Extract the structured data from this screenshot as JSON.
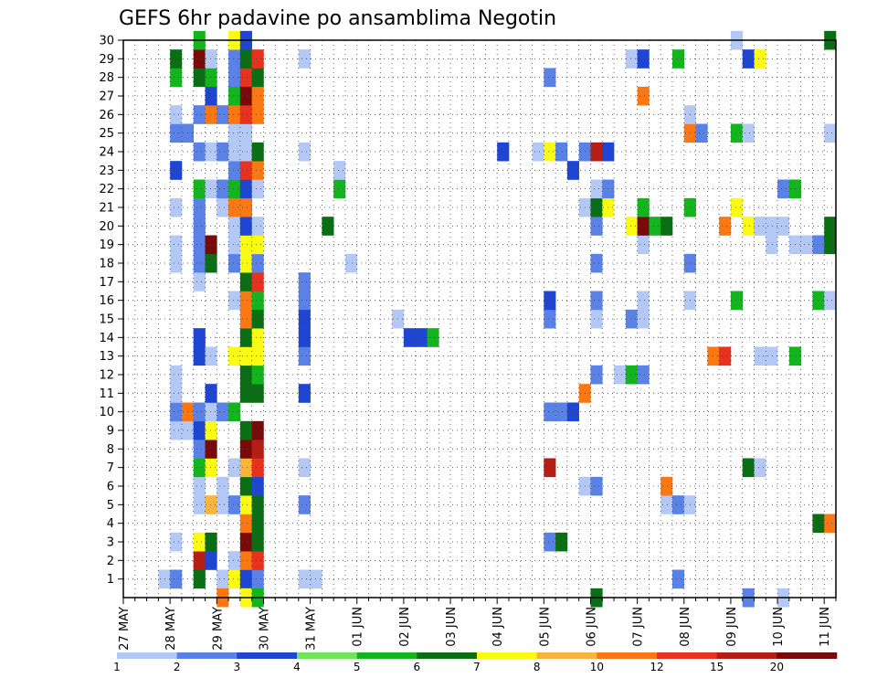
{
  "chart_data": {
    "type": "heatmap",
    "title": "GEFS 6hr padavine po ansamblima Negotin",
    "xlabel": "",
    "ylabel": "",
    "x_tick_labels": [
      "27 MAY",
      "28 MAY",
      "29 MAY",
      "30 MAY",
      "31 MAY",
      "01 JUN",
      "02 JUN",
      "03 JUN",
      "04 JUN",
      "05 JUN",
      "06 JUN",
      "07 JUN",
      "08 JUN",
      "09 JUN",
      "10 JUN",
      "11 JUN"
    ],
    "y_tick_labels": [
      "1",
      "2",
      "3",
      "4",
      "5",
      "6",
      "7",
      "8",
      "9",
      "10",
      "11",
      "12",
      "13",
      "14",
      "15",
      "16",
      "17",
      "18",
      "19",
      "20",
      "21",
      "22",
      "23",
      "24",
      "25",
      "26",
      "27",
      "28",
      "29",
      "30"
    ],
    "grid": true,
    "grid_style": "dotted",
    "colorbar": {
      "position": "bottom",
      "labels": [
        "1",
        "2",
        "3",
        "4",
        "5",
        "6",
        "7",
        "8",
        "10",
        "12",
        "15",
        "20"
      ],
      "colors": [
        "#b4c8f5",
        "#5a82e6",
        "#1e46d2",
        "#6ee65a",
        "#14b41e",
        "#0a6e14",
        "#fafa14",
        "#fab43c",
        "#fa7814",
        "#e6321e",
        "#b41e14",
        "#780a0a"
      ]
    },
    "x_range": [
      0,
      61
    ],
    "y_range": [
      0,
      30
    ],
    "cells_note": "each cell: [time_step_index (6h steps from 27 MAY 00Z), member, color_class 0-11]",
    "cells": [
      [
        3,
        1,
        0
      ],
      [
        4,
        1,
        1
      ],
      [
        6,
        1,
        5
      ],
      [
        8,
        1,
        0
      ],
      [
        9,
        1,
        6
      ],
      [
        10,
        1,
        2
      ],
      [
        11,
        1,
        1
      ],
      [
        15,
        1,
        0
      ],
      [
        16,
        1,
        0
      ],
      [
        47,
        1,
        1
      ],
      [
        6,
        2,
        10
      ],
      [
        7,
        2,
        2
      ],
      [
        9,
        2,
        0
      ],
      [
        10,
        2,
        8
      ],
      [
        11,
        2,
        9
      ],
      [
        4,
        3,
        0
      ],
      [
        6,
        3,
        6
      ],
      [
        7,
        3,
        5
      ],
      [
        10,
        3,
        11
      ],
      [
        11,
        3,
        5
      ],
      [
        36,
        3,
        1
      ],
      [
        37,
        3,
        5
      ],
      [
        10,
        4,
        8
      ],
      [
        11,
        4,
        5
      ],
      [
        59,
        4,
        5
      ],
      [
        60,
        4,
        8
      ],
      [
        6,
        5,
        0
      ],
      [
        7,
        5,
        7
      ],
      [
        8,
        5,
        0
      ],
      [
        9,
        5,
        1
      ],
      [
        10,
        5,
        6
      ],
      [
        11,
        5,
        5
      ],
      [
        15,
        5,
        1
      ],
      [
        46,
        5,
        0
      ],
      [
        47,
        5,
        1
      ],
      [
        48,
        5,
        0
      ],
      [
        6,
        6,
        0
      ],
      [
        8,
        6,
        0
      ],
      [
        10,
        6,
        5
      ],
      [
        11,
        6,
        2
      ],
      [
        39,
        6,
        0
      ],
      [
        40,
        6,
        1
      ],
      [
        46,
        6,
        8
      ],
      [
        6,
        7,
        4
      ],
      [
        7,
        7,
        6
      ],
      [
        9,
        7,
        0
      ],
      [
        10,
        7,
        7
      ],
      [
        11,
        7,
        9
      ],
      [
        15,
        7,
        0
      ],
      [
        36,
        7,
        10
      ],
      [
        53,
        7,
        5
      ],
      [
        54,
        7,
        0
      ],
      [
        6,
        8,
        1
      ],
      [
        7,
        8,
        11
      ],
      [
        10,
        8,
        11
      ],
      [
        11,
        8,
        10
      ],
      [
        4,
        9,
        0
      ],
      [
        5,
        9,
        0
      ],
      [
        6,
        9,
        2
      ],
      [
        7,
        9,
        6
      ],
      [
        10,
        9,
        5
      ],
      [
        11,
        9,
        11
      ],
      [
        4,
        10,
        1
      ],
      [
        5,
        10,
        8
      ],
      [
        6,
        10,
        1
      ],
      [
        7,
        10,
        0
      ],
      [
        8,
        10,
        1
      ],
      [
        9,
        10,
        4
      ],
      [
        36,
        10,
        1
      ],
      [
        37,
        10,
        1
      ],
      [
        38,
        10,
        2
      ],
      [
        4,
        11,
        0
      ],
      [
        7,
        11,
        2
      ],
      [
        10,
        11,
        5
      ],
      [
        11,
        11,
        5
      ],
      [
        15,
        11,
        2
      ],
      [
        39,
        11,
        8
      ],
      [
        4,
        12,
        0
      ],
      [
        10,
        12,
        5
      ],
      [
        11,
        12,
        4
      ],
      [
        40,
        12,
        1
      ],
      [
        42,
        12,
        0
      ],
      [
        43,
        12,
        4
      ],
      [
        44,
        12,
        1
      ],
      [
        6,
        13,
        2
      ],
      [
        7,
        13,
        0
      ],
      [
        9,
        13,
        6
      ],
      [
        10,
        13,
        6
      ],
      [
        11,
        13,
        6
      ],
      [
        15,
        13,
        1
      ],
      [
        50,
        13,
        8
      ],
      [
        51,
        13,
        9
      ],
      [
        54,
        13,
        0
      ],
      [
        55,
        13,
        0
      ],
      [
        57,
        13,
        4
      ],
      [
        6,
        14,
        2
      ],
      [
        10,
        14,
        5
      ],
      [
        11,
        14,
        6
      ],
      [
        15,
        14,
        2
      ],
      [
        24,
        14,
        2
      ],
      [
        25,
        14,
        2
      ],
      [
        26,
        14,
        4
      ],
      [
        10,
        15,
        8
      ],
      [
        11,
        15,
        5
      ],
      [
        15,
        15,
        2
      ],
      [
        23,
        15,
        0
      ],
      [
        36,
        15,
        1
      ],
      [
        40,
        15,
        0
      ],
      [
        43,
        15,
        1
      ],
      [
        44,
        15,
        0
      ],
      [
        9,
        16,
        0
      ],
      [
        10,
        16,
        8
      ],
      [
        11,
        16,
        4
      ],
      [
        15,
        16,
        1
      ],
      [
        36,
        16,
        2
      ],
      [
        40,
        16,
        1
      ],
      [
        44,
        16,
        0
      ],
      [
        48,
        16,
        0
      ],
      [
        52,
        16,
        4
      ],
      [
        59,
        16,
        4
      ],
      [
        60,
        16,
        0
      ],
      [
        6,
        17,
        0
      ],
      [
        10,
        17,
        5
      ],
      [
        11,
        17,
        9
      ],
      [
        15,
        17,
        1
      ],
      [
        4,
        18,
        0
      ],
      [
        6,
        18,
        1
      ],
      [
        7,
        18,
        5
      ],
      [
        9,
        18,
        1
      ],
      [
        10,
        18,
        6
      ],
      [
        11,
        18,
        1
      ],
      [
        19,
        18,
        0
      ],
      [
        40,
        18,
        1
      ],
      [
        48,
        18,
        1
      ],
      [
        4,
        19,
        0
      ],
      [
        6,
        19,
        1
      ],
      [
        7,
        19,
        11
      ],
      [
        9,
        19,
        0
      ],
      [
        10,
        19,
        6
      ],
      [
        11,
        19,
        6
      ],
      [
        44,
        19,
        0
      ],
      [
        55,
        19,
        0
      ],
      [
        57,
        19,
        0
      ],
      [
        58,
        19,
        0
      ],
      [
        59,
        19,
        1
      ],
      [
        60,
        19,
        5
      ],
      [
        6,
        20,
        1
      ],
      [
        9,
        20,
        0
      ],
      [
        10,
        20,
        2
      ],
      [
        11,
        20,
        0
      ],
      [
        17,
        20,
        5
      ],
      [
        40,
        20,
        1
      ],
      [
        43,
        20,
        6
      ],
      [
        44,
        20,
        11
      ],
      [
        45,
        20,
        4
      ],
      [
        46,
        20,
        5
      ],
      [
        51,
        20,
        8
      ],
      [
        53,
        20,
        6
      ],
      [
        54,
        20,
        0
      ],
      [
        55,
        20,
        0
      ],
      [
        56,
        20,
        0
      ],
      [
        60,
        20,
        5
      ],
      [
        4,
        21,
        0
      ],
      [
        6,
        21,
        1
      ],
      [
        8,
        21,
        0
      ],
      [
        9,
        21,
        8
      ],
      [
        10,
        21,
        8
      ],
      [
        39,
        21,
        0
      ],
      [
        40,
        21,
        5
      ],
      [
        41,
        21,
        6
      ],
      [
        44,
        21,
        4
      ],
      [
        48,
        21,
        4
      ],
      [
        52,
        21,
        6
      ],
      [
        6,
        22,
        4
      ],
      [
        7,
        22,
        0
      ],
      [
        8,
        22,
        1
      ],
      [
        9,
        22,
        4
      ],
      [
        10,
        22,
        2
      ],
      [
        11,
        22,
        0
      ],
      [
        18,
        22,
        4
      ],
      [
        40,
        22,
        0
      ],
      [
        41,
        22,
        1
      ],
      [
        56,
        22,
        1
      ],
      [
        57,
        22,
        4
      ],
      [
        4,
        23,
        2
      ],
      [
        9,
        23,
        1
      ],
      [
        10,
        23,
        9
      ],
      [
        11,
        23,
        8
      ],
      [
        18,
        23,
        0
      ],
      [
        38,
        23,
        2
      ],
      [
        6,
        24,
        1
      ],
      [
        7,
        24,
        0
      ],
      [
        8,
        24,
        1
      ],
      [
        9,
        24,
        0
      ],
      [
        10,
        24,
        0
      ],
      [
        11,
        24,
        5
      ],
      [
        15,
        24,
        0
      ],
      [
        32,
        24,
        2
      ],
      [
        35,
        24,
        0
      ],
      [
        36,
        24,
        6
      ],
      [
        37,
        24,
        1
      ],
      [
        39,
        24,
        1
      ],
      [
        40,
        24,
        10
      ],
      [
        41,
        24,
        2
      ],
      [
        4,
        25,
        1
      ],
      [
        5,
        25,
        1
      ],
      [
        9,
        25,
        0
      ],
      [
        10,
        25,
        0
      ],
      [
        48,
        25,
        8
      ],
      [
        49,
        25,
        1
      ],
      [
        52,
        25,
        4
      ],
      [
        53,
        25,
        0
      ],
      [
        60,
        25,
        0
      ],
      [
        4,
        26,
        0
      ],
      [
        6,
        26,
        1
      ],
      [
        7,
        26,
        8
      ],
      [
        8,
        26,
        1
      ],
      [
        9,
        26,
        8
      ],
      [
        10,
        26,
        9
      ],
      [
        11,
        26,
        8
      ],
      [
        48,
        26,
        0
      ],
      [
        7,
        27,
        2
      ],
      [
        9,
        27,
        4
      ],
      [
        10,
        27,
        11
      ],
      [
        11,
        27,
        8
      ],
      [
        44,
        27,
        8
      ],
      [
        4,
        28,
        4
      ],
      [
        6,
        28,
        5
      ],
      [
        7,
        28,
        4
      ],
      [
        9,
        28,
        1
      ],
      [
        10,
        28,
        9
      ],
      [
        11,
        28,
        5
      ],
      [
        36,
        28,
        1
      ],
      [
        4,
        29,
        5
      ],
      [
        6,
        29,
        11
      ],
      [
        7,
        29,
        0
      ],
      [
        9,
        29,
        1
      ],
      [
        10,
        29,
        5
      ],
      [
        11,
        29,
        9
      ],
      [
        15,
        29,
        0
      ],
      [
        43,
        29,
        0
      ],
      [
        44,
        29,
        2
      ],
      [
        47,
        29,
        4
      ],
      [
        53,
        29,
        2
      ],
      [
        54,
        29,
        6
      ],
      [
        6,
        30,
        4
      ],
      [
        9,
        30,
        6
      ],
      [
        10,
        30,
        2
      ],
      [
        52,
        30,
        0
      ],
      [
        60,
        30,
        5
      ],
      [
        8,
        0,
        8
      ],
      [
        10,
        0,
        6
      ],
      [
        11,
        0,
        4
      ],
      [
        40,
        0,
        5
      ],
      [
        53,
        0,
        1
      ],
      [
        56,
        0,
        0
      ]
    ]
  }
}
